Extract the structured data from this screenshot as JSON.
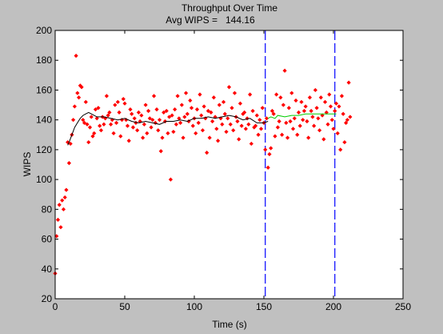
{
  "chart_data": {
    "type": "scatter",
    "title": "Throughput Over Time",
    "subtitle_label": "Avg WIPS =",
    "subtitle_value": "144.16",
    "xlabel": "Time (s)",
    "ylabel": "WIPS",
    "xlim": [
      0,
      250
    ],
    "ylim": [
      20,
      200
    ],
    "xticks": [
      0,
      50,
      100,
      150,
      200,
      250
    ],
    "yticks": [
      20,
      40,
      60,
      80,
      100,
      120,
      140,
      160,
      180,
      200
    ],
    "grid": false,
    "colors": {
      "figure_bg": "#c0c0c0",
      "axes_bg": "#ffffff",
      "points": "#ff0000",
      "moving_avg": "#000000",
      "steady_avg": "#00cc00",
      "vlines": "#0000ff"
    },
    "vertical_lines_x": [
      151,
      201
    ],
    "points": [
      [
        0,
        37
      ],
      [
        1,
        62
      ],
      [
        2,
        73
      ],
      [
        3,
        83
      ],
      [
        4,
        68
      ],
      [
        5,
        86
      ],
      [
        6,
        80
      ],
      [
        7,
        88
      ],
      [
        8,
        93
      ],
      [
        9,
        125
      ],
      [
        10,
        111
      ],
      [
        11,
        124
      ],
      [
        12,
        130
      ],
      [
        13,
        140
      ],
      [
        14,
        149
      ],
      [
        15,
        183
      ],
      [
        16,
        158
      ],
      [
        17,
        155
      ],
      [
        18,
        163
      ],
      [
        19,
        162
      ],
      [
        20,
        140
      ],
      [
        21,
        138
      ],
      [
        22,
        152
      ],
      [
        23,
        137
      ],
      [
        24,
        125
      ],
      [
        25,
        135
      ],
      [
        26,
        142
      ],
      [
        27,
        129
      ],
      [
        28,
        131
      ],
      [
        29,
        147
      ],
      [
        30,
        141
      ],
      [
        31,
        148
      ],
      [
        32,
        136
      ],
      [
        33,
        133
      ],
      [
        34,
        142
      ],
      [
        35,
        137
      ],
      [
        36,
        141
      ],
      [
        37,
        156
      ],
      [
        38,
        143
      ],
      [
        39,
        145
      ],
      [
        40,
        137
      ],
      [
        41,
        140
      ],
      [
        42,
        131
      ],
      [
        43,
        150
      ],
      [
        44,
        138
      ],
      [
        45,
        152
      ],
      [
        46,
        145
      ],
      [
        47,
        129
      ],
      [
        48,
        140
      ],
      [
        49,
        154
      ],
      [
        50,
        151
      ],
      [
        51,
        140
      ],
      [
        52,
        136
      ],
      [
        53,
        126
      ],
      [
        54,
        147
      ],
      [
        55,
        144
      ],
      [
        56,
        135
      ],
      [
        57,
        141
      ],
      [
        58,
        138
      ],
      [
        59,
        133
      ],
      [
        60,
        145
      ],
      [
        61,
        139
      ],
      [
        62,
        143
      ],
      [
        63,
        128
      ],
      [
        64,
        137
      ],
      [
        65,
        150
      ],
      [
        66,
        131
      ],
      [
        67,
        146
      ],
      [
        68,
        141
      ],
      [
        69,
        135
      ],
      [
        70,
        140
      ],
      [
        71,
        156
      ],
      [
        72,
        138
      ],
      [
        73,
        147
      ],
      [
        74,
        133
      ],
      [
        75,
        140
      ],
      [
        76,
        119
      ],
      [
        77,
        128
      ],
      [
        78,
        145
      ],
      [
        79,
        139
      ],
      [
        80,
        146
      ],
      [
        81,
        131
      ],
      [
        82,
        142
      ],
      [
        83,
        100
      ],
      [
        84,
        143
      ],
      [
        85,
        132
      ],
      [
        86,
        147
      ],
      [
        87,
        137
      ],
      [
        88,
        156
      ],
      [
        89,
        141
      ],
      [
        90,
        138
      ],
      [
        91,
        150
      ],
      [
        92,
        128
      ],
      [
        93,
        142
      ],
      [
        94,
        158
      ],
      [
        95,
        144
      ],
      [
        96,
        139
      ],
      [
        97,
        153
      ],
      [
        98,
        148
      ],
      [
        99,
        136
      ],
      [
        100,
        141
      ],
      [
        101,
        131
      ],
      [
        102,
        147
      ],
      [
        103,
        138
      ],
      [
        104,
        157
      ],
      [
        105,
        143
      ],
      [
        106,
        133
      ],
      [
        107,
        149
      ],
      [
        108,
        141
      ],
      [
        109,
        118
      ],
      [
        110,
        146
      ],
      [
        111,
        128
      ],
      [
        112,
        145
      ],
      [
        113,
        139
      ],
      [
        114,
        155
      ],
      [
        115,
        142
      ],
      [
        116,
        134
      ],
      [
        117,
        126
      ],
      [
        118,
        150
      ],
      [
        119,
        141
      ],
      [
        120,
        137
      ],
      [
        121,
        152
      ],
      [
        122,
        144
      ],
      [
        123,
        132
      ],
      [
        124,
        141
      ],
      [
        125,
        162
      ],
      [
        126,
        137
      ],
      [
        127,
        148
      ],
      [
        128,
        133
      ],
      [
        129,
        158
      ],
      [
        130,
        142
      ],
      [
        131,
        139
      ],
      [
        132,
        127
      ],
      [
        133,
        151
      ],
      [
        134,
        136
      ],
      [
        135,
        144
      ],
      [
        136,
        145
      ],
      [
        137,
        134
      ],
      [
        138,
        141
      ],
      [
        139,
        137
      ],
      [
        140,
        157
      ],
      [
        141,
        124
      ],
      [
        142,
        146
      ],
      [
        143,
        135
      ],
      [
        144,
        136
      ],
      [
        145,
        143
      ],
      [
        146,
        130
      ],
      [
        147,
        140
      ],
      [
        148,
        134
      ],
      [
        149,
        148
      ],
      [
        150,
        138
      ],
      [
        151,
        120
      ],
      [
        152,
        141
      ],
      [
        153,
        108
      ],
      [
        154,
        117
      ],
      [
        155,
        121
      ],
      [
        156,
        146
      ],
      [
        157,
        144
      ],
      [
        158,
        129
      ],
      [
        159,
        157
      ],
      [
        160,
        135
      ],
      [
        161,
        139
      ],
      [
        162,
        155
      ],
      [
        163,
        130
      ],
      [
        164,
        150
      ],
      [
        165,
        173
      ],
      [
        166,
        138
      ],
      [
        167,
        128
      ],
      [
        168,
        148
      ],
      [
        169,
        139
      ],
      [
        170,
        158
      ],
      [
        171,
        134
      ],
      [
        172,
        141
      ],
      [
        173,
        153
      ],
      [
        174,
        130
      ],
      [
        175,
        145
      ],
      [
        176,
        136
      ],
      [
        177,
        152
      ],
      [
        178,
        140
      ],
      [
        179,
        146
      ],
      [
        180,
        149
      ],
      [
        181,
        139
      ],
      [
        182,
        128
      ],
      [
        183,
        155
      ],
      [
        184,
        146
      ],
      [
        185,
        142
      ],
      [
        186,
        136
      ],
      [
        187,
        160
      ],
      [
        188,
        148
      ],
      [
        189,
        141
      ],
      [
        190,
        133
      ],
      [
        191,
        155
      ],
      [
        192,
        143
      ],
      [
        193,
        127
      ],
      [
        194,
        152
      ],
      [
        195,
        145
      ],
      [
        196,
        137
      ],
      [
        197,
        157
      ],
      [
        198,
        149
      ],
      [
        199,
        140
      ],
      [
        200,
        134
      ],
      [
        201,
        146
      ],
      [
        202,
        151
      ],
      [
        203,
        131
      ],
      [
        204,
        149
      ],
      [
        205,
        120
      ],
      [
        206,
        156
      ],
      [
        207,
        144
      ],
      [
        208,
        125
      ],
      [
        209,
        138
      ],
      [
        210,
        140
      ],
      [
        211,
        165
      ],
      [
        212,
        142
      ]
    ],
    "moving_avg": [
      [
        9,
        123
      ],
      [
        10,
        125
      ],
      [
        12,
        130
      ],
      [
        14,
        135
      ],
      [
        16,
        138
      ],
      [
        18,
        141
      ],
      [
        20,
        143
      ],
      [
        22,
        144
      ],
      [
        24,
        145
      ],
      [
        26,
        144
      ],
      [
        28,
        143
      ],
      [
        30,
        142
      ],
      [
        35,
        142
      ],
      [
        40,
        141
      ],
      [
        45,
        140
      ],
      [
        50,
        141
      ],
      [
        55,
        139
      ],
      [
        60,
        138
      ],
      [
        65,
        139
      ],
      [
        70,
        138
      ],
      [
        75,
        137
      ],
      [
        80,
        139
      ],
      [
        85,
        139
      ],
      [
        90,
        140
      ],
      [
        95,
        139
      ],
      [
        100,
        141
      ],
      [
        105,
        141
      ],
      [
        110,
        142
      ],
      [
        115,
        141
      ],
      [
        120,
        142
      ],
      [
        125,
        143
      ],
      [
        130,
        142
      ],
      [
        135,
        140
      ],
      [
        140,
        141
      ],
      [
        145,
        138
      ],
      [
        150,
        138
      ],
      [
        153,
        139
      ]
    ],
    "steady_avg": [
      [
        153,
        141
      ],
      [
        155,
        142
      ],
      [
        158,
        141
      ],
      [
        160,
        143
      ],
      [
        165,
        142
      ],
      [
        170,
        143
      ],
      [
        175,
        143
      ],
      [
        180,
        144
      ],
      [
        185,
        144
      ],
      [
        190,
        144
      ],
      [
        195,
        144
      ],
      [
        200,
        144
      ],
      [
        202,
        144
      ]
    ]
  }
}
